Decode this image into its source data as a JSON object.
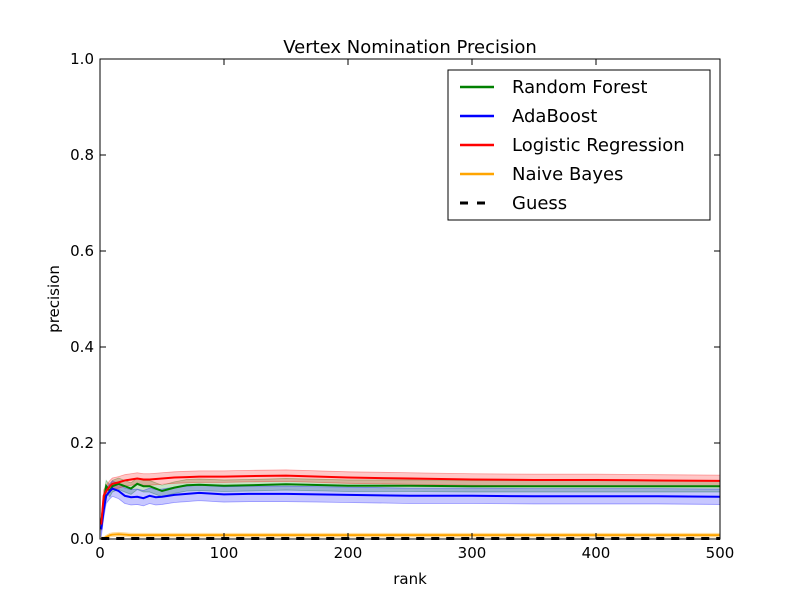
{
  "chart_data": {
    "type": "line",
    "title": "Vertex Nomination Precision",
    "xlabel": "rank",
    "ylabel": "precision",
    "xlim": [
      0,
      500
    ],
    "ylim": [
      0.0,
      1.0
    ],
    "x_ticks": [
      "0",
      "100",
      "200",
      "300",
      "400",
      "500"
    ],
    "y_ticks": [
      "0.0",
      "0.2",
      "0.4",
      "0.6",
      "0.8",
      "1.0"
    ],
    "grid": false,
    "legend_position": "top-right",
    "x": [
      1,
      3,
      5,
      8,
      10,
      15,
      20,
      25,
      30,
      35,
      40,
      45,
      50,
      60,
      70,
      80,
      100,
      120,
      150,
      200,
      250,
      300,
      350,
      400,
      450,
      500
    ],
    "series": [
      {
        "name": "Random Forest",
        "color": "#008000",
        "style": "solid",
        "values": [
          0.03,
          0.08,
          0.11,
          0.1,
          0.11,
          0.115,
          0.11,
          0.105,
          0.115,
          0.11,
          0.11,
          0.105,
          0.1,
          0.107,
          0.112,
          0.113,
          0.111,
          0.112,
          0.114,
          0.111,
          0.111,
          0.11,
          0.11,
          0.11,
          0.11,
          0.11
        ],
        "band": 0.012
      },
      {
        "name": "AdaBoost",
        "color": "#0000ff",
        "style": "solid",
        "values": [
          0.02,
          0.06,
          0.09,
          0.1,
          0.105,
          0.1,
          0.09,
          0.087,
          0.088,
          0.085,
          0.09,
          0.087,
          0.088,
          0.092,
          0.094,
          0.096,
          0.093,
          0.094,
          0.094,
          0.092,
          0.09,
          0.09,
          0.089,
          0.089,
          0.089,
          0.088
        ],
        "band": 0.016
      },
      {
        "name": "Logistic Regression",
        "color": "#ff0000",
        "style": "solid",
        "values": [
          0.03,
          0.09,
          0.1,
          0.11,
          0.115,
          0.118,
          0.122,
          0.124,
          0.126,
          0.124,
          0.124,
          0.125,
          0.126,
          0.128,
          0.129,
          0.13,
          0.13,
          0.131,
          0.132,
          0.128,
          0.126,
          0.124,
          0.123,
          0.123,
          0.122,
          0.121
        ],
        "band": 0.012
      },
      {
        "name": "Naive Bayes",
        "color": "#ffa500",
        "style": "solid",
        "values": [
          0.0,
          0.0,
          0.004,
          0.008,
          0.009,
          0.01,
          0.009,
          0.008,
          0.008,
          0.008,
          0.008,
          0.008,
          0.008,
          0.008,
          0.008,
          0.008,
          0.008,
          0.008,
          0.008,
          0.008,
          0.008,
          0.008,
          0.008,
          0.008,
          0.008,
          0.008
        ],
        "band": 0.004
      },
      {
        "name": "Guess",
        "color": "#000000",
        "style": "dashed",
        "values": [
          0.001,
          0.001,
          0.001,
          0.001,
          0.001,
          0.001,
          0.001,
          0.001,
          0.001,
          0.001,
          0.001,
          0.001,
          0.001,
          0.001,
          0.001,
          0.001,
          0.001,
          0.001,
          0.001,
          0.001,
          0.001,
          0.001,
          0.001,
          0.001,
          0.001,
          0.001
        ],
        "band": 0
      }
    ]
  }
}
